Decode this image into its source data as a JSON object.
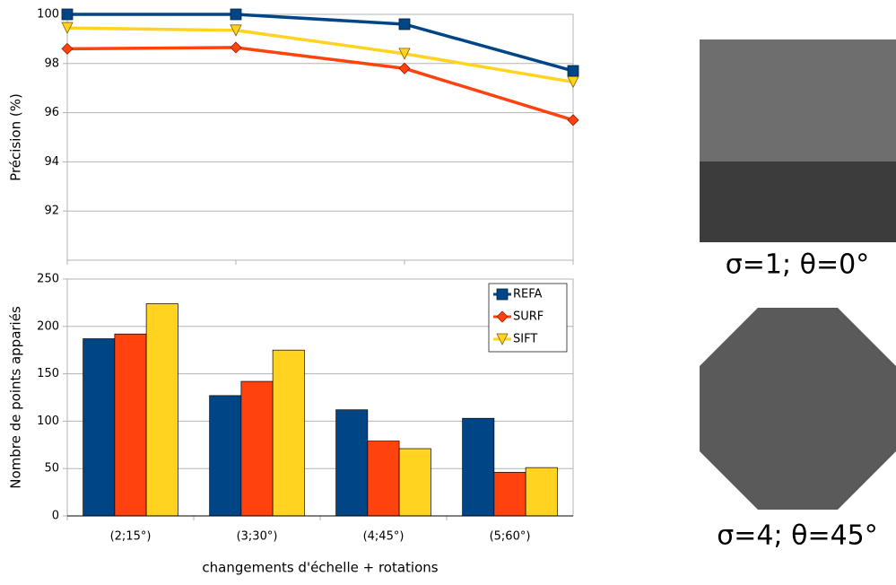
{
  "chart_data": [
    {
      "type": "line",
      "y_label": "Précision (%)",
      "categories": [
        null,
        null,
        null,
        null
      ],
      "ylim": [
        90,
        100
      ],
      "yticks": [
        92,
        94,
        96,
        98,
        100
      ],
      "grid": true,
      "series": [
        {
          "color": "#004586",
          "marker": "square",
          "values": [
            100,
            100,
            99.6,
            97.7
          ]
        },
        {
          "color": "#ff420e",
          "marker": "diamond",
          "values": [
            98.6,
            98.65,
            97.8,
            95.7
          ]
        },
        {
          "color": "#ffd320",
          "marker": "triangle",
          "values": [
            99.45,
            99.35,
            98.4,
            97.25
          ]
        }
      ]
    },
    {
      "type": "bar",
      "y_label": "Nombre de points appariés",
      "x_label": "changements d'échelle + rotations",
      "categories": [
        "(2;15°)",
        "(3;30°)",
        "(4;45°)",
        "(5;60°)"
      ],
      "ylim": [
        0,
        250
      ],
      "yticks": [
        0,
        50,
        100,
        150,
        200,
        250
      ],
      "grid": true,
      "legend": "top-right",
      "series": [
        {
          "name": "REFA",
          "color": "#004586",
          "marker": "square",
          "values": [
            187,
            127,
            112,
            103
          ]
        },
        {
          "name": "SURF",
          "color": "#ff420e",
          "marker": "diamond",
          "values": [
            192,
            142,
            79,
            46
          ]
        },
        {
          "name": "SIFT",
          "color": "#ffd320",
          "marker": "triangle",
          "values": [
            224,
            175,
            71,
            51
          ]
        }
      ]
    }
  ],
  "images": [
    {
      "caption": "σ=1; θ=0°"
    },
    {
      "caption": "σ=4; θ=45°"
    }
  ]
}
